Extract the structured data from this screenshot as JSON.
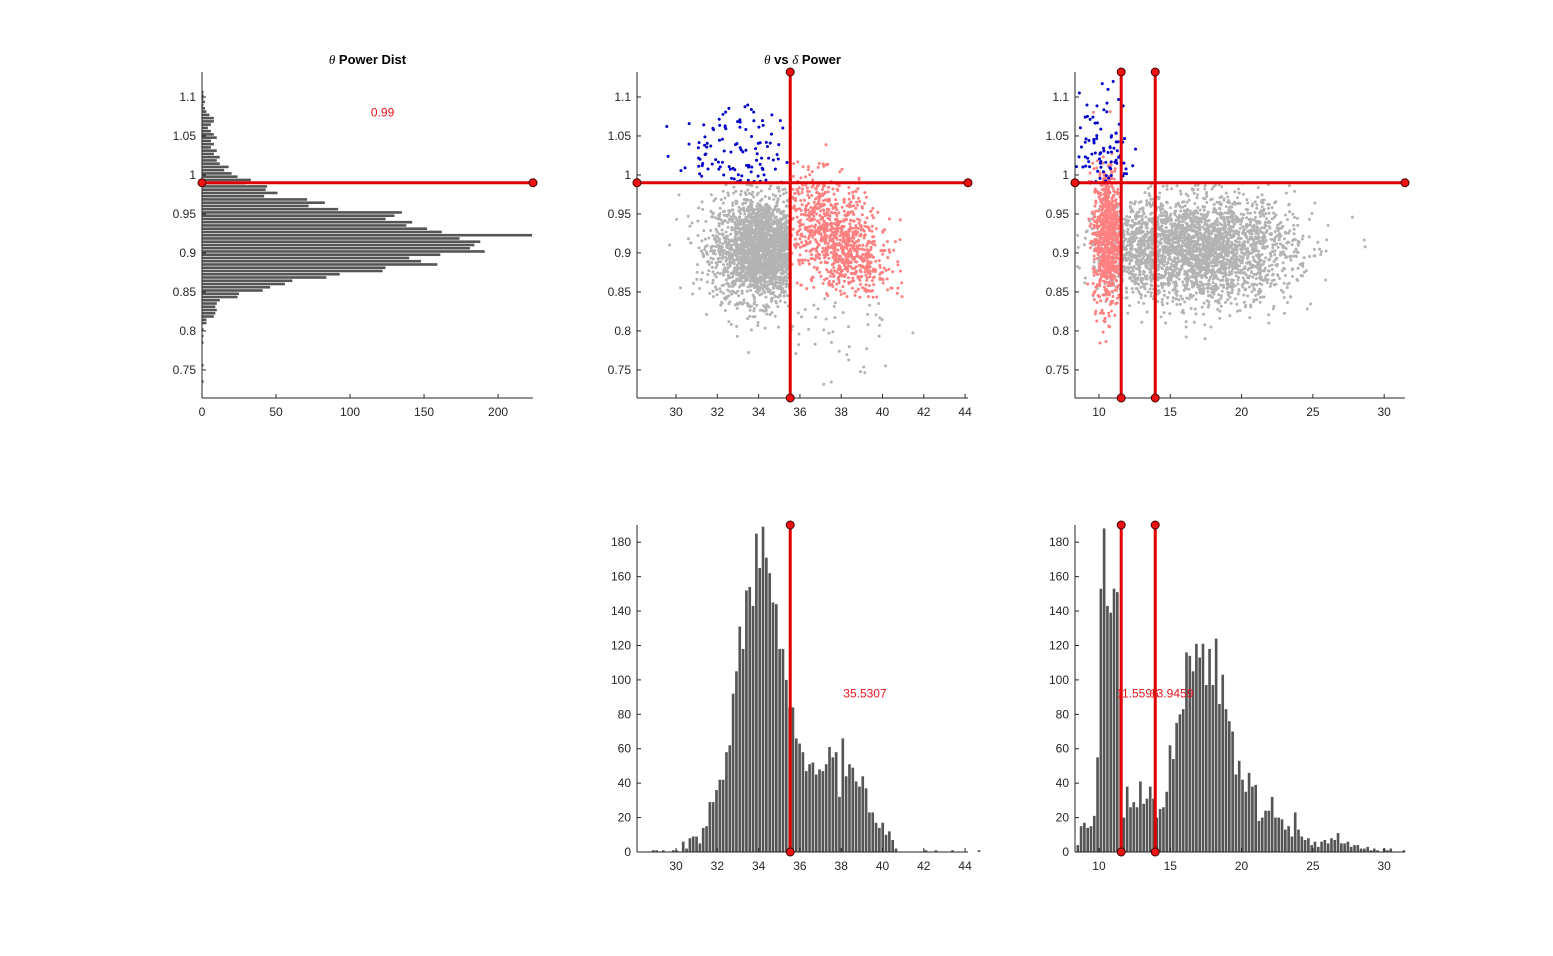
{
  "colors": {
    "bar": "#555555",
    "axis": "#262626",
    "marker_line": "#e00000",
    "marker_fill": "#ee1111",
    "marker_edge": "#400000",
    "annotation": "#e8141e",
    "unselected_points": "#b3b3b3",
    "selected_points": "#ff8080",
    "high_points": "#0000c8"
  },
  "chart_data": [
    {
      "id": "theta-dist",
      "type": "bar",
      "orientation": "horizontal",
      "title_parts": [
        {
          "text": "θ",
          "italic": true
        },
        {
          "text": " Power Dist",
          "italic": false
        }
      ],
      "xlim": [
        0,
        223.6
      ],
      "ylim": [
        0.714,
        1.132
      ],
      "xticks": [
        "0",
        "50",
        "100",
        "150",
        "200"
      ],
      "yticks": [
        "0.75",
        "0.8",
        "0.85",
        "0.9",
        "0.95",
        "1",
        "1.05",
        "1.1"
      ],
      "bin_start": 0.733,
      "bin_width": 0.00417,
      "counts": [
        1,
        0,
        0,
        0,
        0,
        1,
        0,
        0,
        0,
        0,
        0,
        0,
        1,
        0,
        1,
        0,
        1,
        0,
        3,
        3,
        8,
        9,
        10,
        9,
        10,
        12,
        24,
        25,
        41,
        46,
        56,
        61,
        84,
        93,
        122,
        124,
        159,
        148,
        140,
        161,
        191,
        181,
        184,
        188,
        174,
        223,
        162,
        152,
        138,
        142,
        124,
        130,
        135,
        92,
        72,
        83,
        71,
        42,
        51,
        43,
        44,
        29,
        33,
        24,
        20,
        15,
        18,
        12,
        10,
        12,
        8,
        10,
        6,
        8,
        6,
        10,
        8,
        6,
        4,
        6,
        8,
        8,
        5,
        3,
        2,
        1,
        2,
        1,
        1,
        1
      ],
      "hlines": [
        0.99
      ],
      "annotations": [
        {
          "text": "0.99",
          "x": 122,
          "y": 1.08
        }
      ]
    },
    {
      "id": "theta-vs-delta",
      "type": "scatter",
      "title_parts": [
        {
          "text": "θ",
          "italic": true
        },
        {
          "text": " vs ",
          "italic": false
        },
        {
          "text": "δ",
          "italic": true
        },
        {
          "text": " Power",
          "italic": false
        }
      ],
      "xlim": [
        28.11,
        44.14
      ],
      "ylim": [
        0.714,
        1.132
      ],
      "xticks": [
        "30",
        "32",
        "34",
        "36",
        "38",
        "40",
        "42",
        "44"
      ],
      "yticks": [
        "0.75",
        "0.8",
        "0.85",
        "0.9",
        "0.95",
        "1",
        "1.05",
        "1.1"
      ],
      "point_clusters": [
        {
          "group": "unselected",
          "center": [
            34.2,
            0.905
          ],
          "spread": [
            1.2,
            0.033
          ],
          "count": 2200,
          "slope": 0,
          "xclip": [
            28.5,
            35.53
          ],
          "yclip": [
            0.72,
            0.99
          ]
        },
        {
          "group": "unselected",
          "center": [
            37.5,
            0.8
          ],
          "spread": [
            1.6,
            0.035
          ],
          "count": 45,
          "slope": 0,
          "xclip": [
            35.53,
            44.2
          ],
          "yclip": [
            0.72,
            0.85
          ]
        },
        {
          "group": "selected",
          "center": [
            37.8,
            0.915
          ],
          "spread": [
            1.3,
            0.035
          ],
          "count": 950,
          "slope": -0.015,
          "xclip": [
            35.53,
            41
          ],
          "yclip": [
            0.84,
            1.1
          ]
        },
        {
          "group": "high",
          "center": [
            33.5,
            1.02
          ],
          "spread": [
            1.8,
            0.035
          ],
          "count": 110,
          "slope": 0,
          "xclip": [
            29,
            35.5
          ],
          "yclip": [
            0.99,
            1.13
          ]
        }
      ],
      "hlines": [
        0.99
      ],
      "vlines": [
        35.5307
      ]
    },
    {
      "id": "theta-vs-other",
      "type": "scatter",
      "xlim": [
        8.32,
        31.46
      ],
      "ylim": [
        0.714,
        1.132
      ],
      "xticks": [
        "10",
        "15",
        "20",
        "25",
        "30"
      ],
      "yticks": [
        "0.75",
        "0.8",
        "0.85",
        "0.9",
        "0.95",
        "1",
        "1.05",
        "1.1"
      ],
      "point_clusters": [
        {
          "group": "unselected",
          "center": [
            17.2,
            0.905
          ],
          "spread": [
            3.2,
            0.034
          ],
          "count": 2600,
          "slope": 0,
          "xclip": [
            8.5,
            31.4
          ],
          "yclip": [
            0.72,
            0.99
          ]
        },
        {
          "group": "unselected",
          "center": [
            12.5,
            0.905
          ],
          "spread": [
            1.2,
            0.03
          ],
          "count": 300,
          "slope": 0,
          "xclip": [
            8.5,
            31.4
          ],
          "yclip": [
            0.72,
            0.99
          ]
        },
        {
          "group": "selected",
          "center": [
            10.6,
            0.92
          ],
          "spread": [
            0.5,
            0.045
          ],
          "count": 800,
          "slope": 0,
          "xclip": [
            9.2,
            11.6
          ],
          "yclip": [
            0.78,
            1.12
          ]
        },
        {
          "group": "high",
          "center": [
            10.4,
            1.03
          ],
          "spread": [
            0.9,
            0.04
          ],
          "count": 90,
          "slope": 0,
          "xclip": [
            8.4,
            14
          ],
          "yclip": [
            0.99,
            1.13
          ]
        }
      ],
      "hlines": [
        0.99
      ],
      "vlines": [
        11.5596,
        13.9459
      ]
    },
    {
      "id": "delta-dist",
      "type": "bar",
      "orientation": "vertical",
      "xlim": [
        28.11,
        44.14
      ],
      "ylim": [
        0,
        190
      ],
      "xticks": [
        "30",
        "32",
        "34",
        "36",
        "38",
        "40",
        "42",
        "44"
      ],
      "yticks": [
        "0",
        "20",
        "40",
        "60",
        "80",
        "100",
        "120",
        "140",
        "160",
        "180"
      ],
      "bin_start": 28.82,
      "bin_width": 0.161,
      "counts": [
        1,
        1,
        0,
        1,
        0,
        0,
        1,
        1,
        0,
        6,
        2,
        8,
        9,
        9,
        5,
        14,
        15,
        29,
        29,
        36,
        42,
        42,
        58,
        62,
        92,
        105,
        131,
        118,
        152,
        154,
        143,
        185,
        165,
        189,
        171,
        162,
        145,
        144,
        118,
        118,
        100,
        84,
        84,
        66,
        63,
        58,
        47,
        51,
        52,
        45,
        48,
        47,
        51,
        61,
        55,
        58,
        32,
        66,
        44,
        51,
        49,
        41,
        38,
        44,
        37,
        23,
        23,
        17,
        14,
        17,
        10,
        12,
        7,
        2,
        0,
        0,
        0,
        0,
        0,
        0,
        0,
        0,
        1,
        0,
        0,
        1,
        0,
        0,
        0,
        0,
        1,
        0,
        0,
        0,
        0,
        0,
        0,
        0,
        1
      ],
      "vlines": [
        35.5307
      ],
      "annotations": [
        {
          "text": "35.5307",
          "x": 39.15,
          "y": 92
        }
      ]
    },
    {
      "id": "other-dist",
      "type": "bar",
      "orientation": "vertical",
      "xlim": [
        8.32,
        31.46
      ],
      "ylim": [
        0,
        190
      ],
      "xticks": [
        "10",
        "15",
        "20",
        "25",
        "30"
      ],
      "yticks": [
        "0",
        "20",
        "40",
        "60",
        "80",
        "100",
        "120",
        "140",
        "160",
        "180"
      ],
      "bin_start": 8.4,
      "bin_width": 0.231,
      "counts": [
        4,
        15,
        17,
        14,
        15,
        21,
        55,
        153,
        188,
        143,
        139,
        153,
        151,
        91,
        20,
        38,
        26,
        29,
        26,
        41,
        28,
        31,
        38,
        31,
        20,
        25,
        26,
        35,
        62,
        54,
        75,
        80,
        83,
        116,
        114,
        105,
        121,
        113,
        121,
        97,
        118,
        97,
        124,
        86,
        103,
        83,
        76,
        70,
        45,
        53,
        42,
        35,
        46,
        38,
        39,
        18,
        20,
        24,
        24,
        32,
        20,
        20,
        19,
        13,
        15,
        9,
        23,
        13,
        9,
        7,
        8,
        4,
        6,
        3,
        6,
        7,
        5,
        8,
        7,
        11,
        5,
        5,
        6,
        3,
        4,
        4,
        2,
        2,
        3,
        1,
        2,
        1,
        0,
        2,
        1,
        2,
        0,
        0,
        0,
        1
      ],
      "vlines": [
        11.5596,
        13.9459
      ],
      "annotations": [
        {
          "text": "11.5596",
          "x": 12.7,
          "y": 92
        },
        {
          "text": "13.9459",
          "x": 15.1,
          "y": 92
        }
      ]
    }
  ]
}
